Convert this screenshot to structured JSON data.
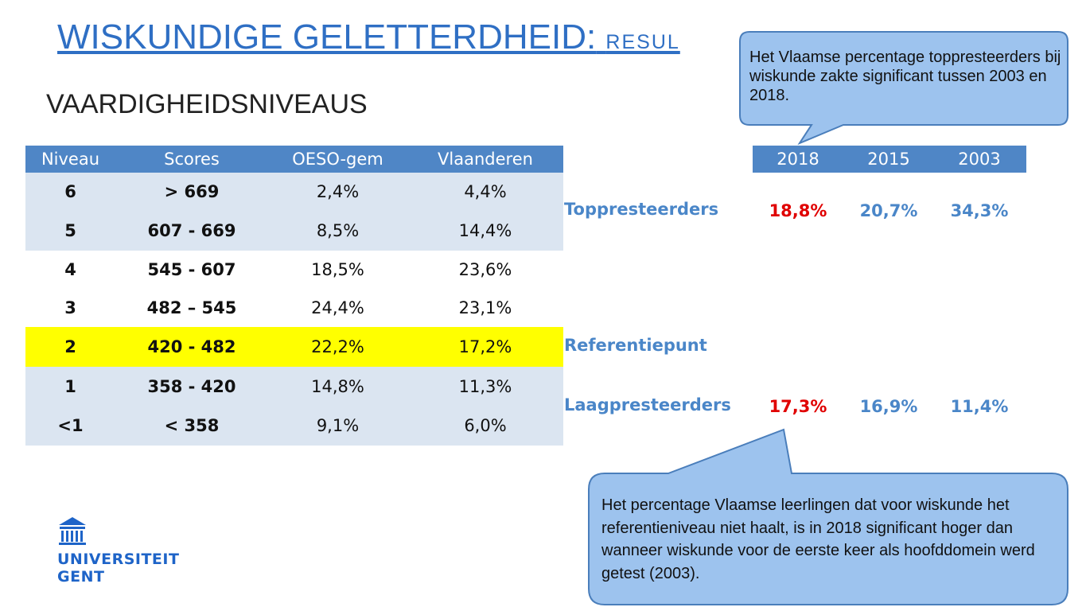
{
  "header": {
    "title": "WISKUNDIGE GELETTERDHEID:",
    "title_suffix": "RESUL",
    "subtitle": "VAARDIGHEIDSNIVEAUS"
  },
  "levels_table": {
    "columns": [
      "Niveau",
      "Scores",
      "OESO-gem",
      "Vlaanderen"
    ],
    "rows": [
      [
        "6",
        "> 669",
        "2,4%",
        "4,4%"
      ],
      [
        "5",
        "607 - 669",
        "8,5%",
        "14,4%"
      ],
      [
        "4",
        "545 - 607",
        "18,5%",
        "23,6%"
      ],
      [
        "3",
        "482 – 545",
        "24,4%",
        "23,1%"
      ],
      [
        "2",
        "420 - 482",
        "22,2%",
        "17,2%"
      ],
      [
        "1",
        "358 - 420",
        "14,8%",
        "11,3%"
      ],
      [
        "<1",
        "< 358",
        "9,1%",
        "6,0%"
      ]
    ]
  },
  "trend_table": {
    "columns": [
      "2018",
      "2015",
      "2003"
    ],
    "rows": [
      {
        "label": "Toppresteerders",
        "values": [
          "18,8%",
          "20,7%",
          "34,3%"
        ]
      },
      {
        "label": "Referentiepunt",
        "values": []
      },
      {
        "label": "Laagpresteerders",
        "values": [
          "17,3%",
          "16,9%",
          "11,4%"
        ]
      }
    ]
  },
  "callouts": [
    "Het Vlaamse percentage toppresteerders bij wiskunde zakte significant tussen 2003 en 2018.",
    "Het percentage Vlaamse leerlingen dat voor wiskunde het referentieniveau niet haalt, is in 2018 significant hoger dan wanneer wiskunde voor de eerste keer als hoofddomein werd getest (2003)."
  ],
  "logo": {
    "line1": "UNIVERSITEIT",
    "line2": "GENT"
  }
}
